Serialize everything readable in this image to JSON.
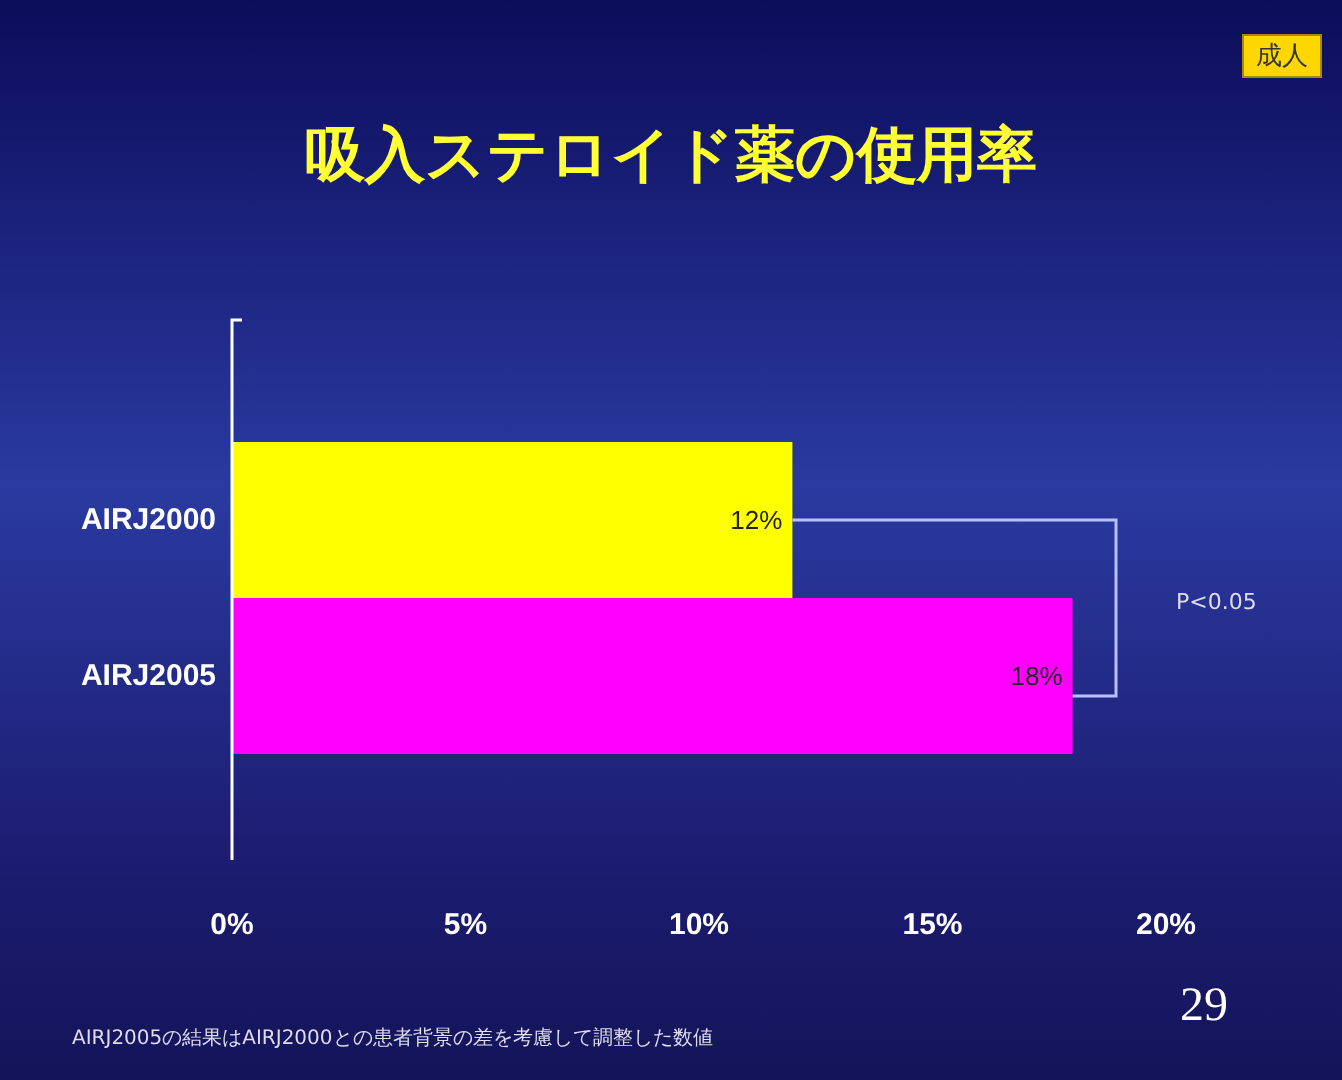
{
  "chart_data": {
    "type": "bar",
    "orientation": "horizontal",
    "title": "吸入ステロイド薬の使用率",
    "categories": [
      "AIRJ2000",
      "AIRJ2005"
    ],
    "values": [
      12,
      18
    ],
    "colors": [
      "#ffff00",
      "#ff00ff"
    ],
    "value_labels": [
      "12%",
      "18%"
    ],
    "xlim": [
      0,
      20
    ],
    "xticks": [
      {
        "value": 0,
        "label": "0%"
      },
      {
        "value": 5,
        "label": "5%"
      },
      {
        "value": 10,
        "label": "10%"
      },
      {
        "value": 15,
        "label": "15%"
      },
      {
        "value": 20,
        "label": "20%"
      }
    ],
    "grid": false,
    "annotations": [
      "成人",
      "P<0.05",
      "AIRJ2005の結果はAIRJ2000との患者背景の差を考慮して調整した数値",
      "29"
    ]
  }
}
